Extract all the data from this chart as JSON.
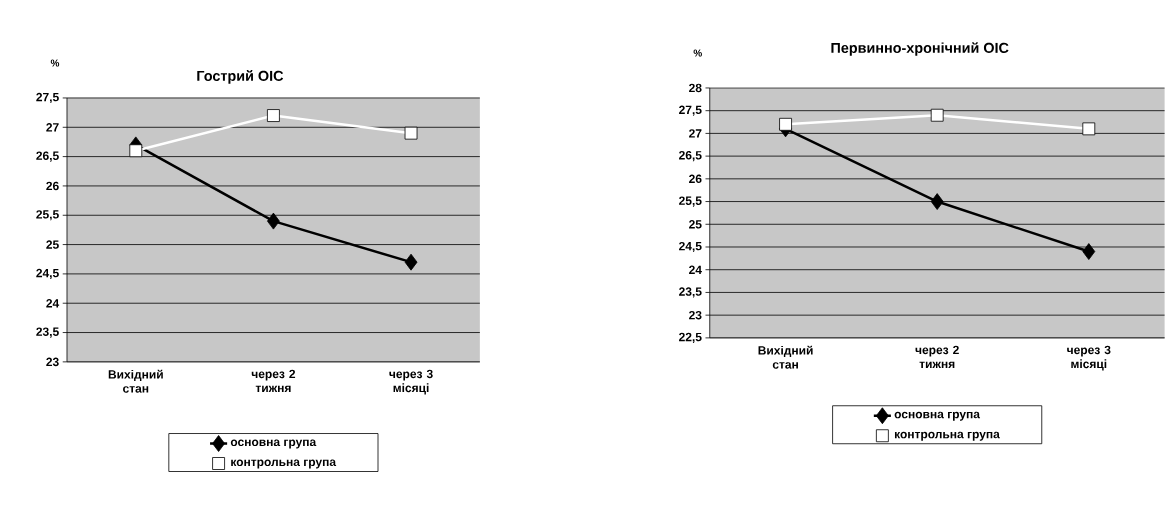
{
  "chart_data": [
    {
      "type": "line",
      "title": "Гострий ОІС",
      "ylabel": "%",
      "categories": [
        "Вихідний стан",
        "через 2 тижня",
        "через 3 місяці"
      ],
      "series": [
        {
          "name": "основна група",
          "color": "#000000",
          "marker": "diamond",
          "values": [
            26.7,
            25.4,
            24.7
          ]
        },
        {
          "name": "контрольна група",
          "color": "#ffffff",
          "marker": "square",
          "values": [
            26.6,
            27.2,
            26.9
          ]
        }
      ],
      "ylim": [
        23,
        27.5
      ],
      "yticks": [
        23,
        {
          "value": 23.5,
          "label": "23,5"
        },
        24,
        {
          "value": 24.5,
          "label": "24,5"
        },
        25,
        {
          "value": 25.5,
          "label": "25,5"
        },
        26,
        {
          "value": 26.5,
          "label": "26,5"
        },
        27,
        {
          "value": 27.5,
          "label": "27,5"
        }
      ],
      "grid": "y",
      "legend": "bottom"
    },
    {
      "type": "line",
      "title": "Первинно-хронічний ОІС",
      "ylabel": "%",
      "categories": [
        "Вихідний стан",
        "через 2 тижня",
        "через 3 місяці"
      ],
      "series": [
        {
          "name": "основна група",
          "color": "#000000",
          "marker": "diamond",
          "values": [
            27.1,
            25.5,
            24.4
          ]
        },
        {
          "name": "контрольна група",
          "color": "#ffffff",
          "marker": "square",
          "values": [
            27.2,
            27.4,
            27.1
          ]
        }
      ],
      "ylim": [
        22.5,
        28
      ],
      "yticks": [
        {
          "value": 22.5,
          "label": "22,5"
        },
        23,
        {
          "value": 23.5,
          "label": "23,5"
        },
        24,
        {
          "value": 24.5,
          "label": "24,5"
        },
        25,
        {
          "value": 25.5,
          "label": "25,5"
        },
        26,
        {
          "value": 26.5,
          "label": "26,5"
        },
        27,
        {
          "value": 27.5,
          "label": "27,5"
        },
        28
      ],
      "grid": "y",
      "legend": "bottom"
    }
  ]
}
